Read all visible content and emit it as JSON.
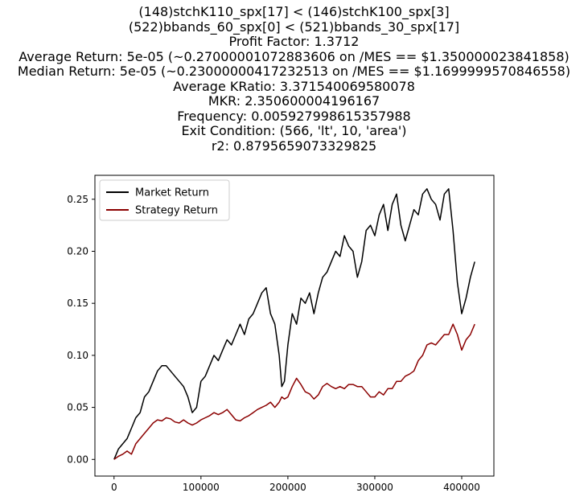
{
  "chart_data": {
    "type": "line",
    "title_lines": [
      "(148)stchK110_spx[17] < (146)stchK100_spx[3]",
      "(522)bbands_60_spx[0] < (521)bbands_30_spx[17]",
      "Profit Factor: 1.3712",
      "Average Return: 5e-05 (~0.27000001072883606 on /MES == $1.350000023841858)",
      "Median Return: 5e-05 (~0.23000000417232513 on /MES == $1.1699999570846558)",
      "Average KRatio: 3.371540069580078",
      "MKR: 2.350600004196167",
      "Frequency: 0.005927998615357988",
      "Exit Condition: (566, 'lt', 10, 'area')",
      "r2: 0.8795659073329825"
    ],
    "xlabel": "",
    "ylabel": "",
    "xlim": [
      -22000,
      437000
    ],
    "ylim": [
      -0.016,
      0.273
    ],
    "x_ticks": [
      0,
      100000,
      200000,
      300000,
      400000
    ],
    "x_tick_labels": [
      "0",
      "100000",
      "200000",
      "300000",
      "400000"
    ],
    "y_ticks": [
      0.0,
      0.05,
      0.1,
      0.15,
      0.2,
      0.25
    ],
    "y_tick_labels": [
      "0.00",
      "0.05",
      "0.10",
      "0.15",
      "0.20",
      "0.25"
    ],
    "grid": false,
    "legend_position": "top-left",
    "series": [
      {
        "name": "Market Return",
        "color": "#000000",
        "x": [
          0,
          5000,
          10000,
          15000,
          20000,
          25000,
          30000,
          35000,
          40000,
          45000,
          50000,
          55000,
          60000,
          65000,
          70000,
          75000,
          80000,
          85000,
          90000,
          95000,
          100000,
          105000,
          110000,
          115000,
          120000,
          125000,
          130000,
          135000,
          140000,
          145000,
          150000,
          155000,
          160000,
          165000,
          170000,
          175000,
          180000,
          185000,
          190000,
          193000,
          196000,
          200000,
          205000,
          210000,
          215000,
          220000,
          225000,
          230000,
          235000,
          240000,
          245000,
          250000,
          255000,
          260000,
          265000,
          270000,
          275000,
          280000,
          285000,
          290000,
          295000,
          300000,
          305000,
          310000,
          315000,
          320000,
          325000,
          330000,
          335000,
          340000,
          345000,
          350000,
          355000,
          360000,
          365000,
          370000,
          375000,
          380000,
          385000,
          390000,
          395000,
          400000,
          405000,
          410000,
          415000
        ],
        "y": [
          0.0,
          0.01,
          0.015,
          0.02,
          0.03,
          0.04,
          0.045,
          0.06,
          0.065,
          0.075,
          0.085,
          0.09,
          0.09,
          0.085,
          0.08,
          0.075,
          0.07,
          0.06,
          0.045,
          0.05,
          0.075,
          0.08,
          0.09,
          0.1,
          0.095,
          0.105,
          0.115,
          0.11,
          0.12,
          0.13,
          0.12,
          0.135,
          0.14,
          0.15,
          0.16,
          0.165,
          0.14,
          0.13,
          0.1,
          0.07,
          0.075,
          0.11,
          0.14,
          0.13,
          0.155,
          0.15,
          0.16,
          0.14,
          0.16,
          0.175,
          0.18,
          0.19,
          0.2,
          0.195,
          0.215,
          0.205,
          0.2,
          0.175,
          0.19,
          0.22,
          0.225,
          0.215,
          0.235,
          0.245,
          0.22,
          0.245,
          0.255,
          0.225,
          0.21,
          0.225,
          0.24,
          0.235,
          0.255,
          0.26,
          0.25,
          0.245,
          0.23,
          0.255,
          0.26,
          0.22,
          0.17,
          0.14,
          0.155,
          0.175,
          0.19
        ]
      },
      {
        "name": "Strategy Return",
        "color": "#8b0000",
        "x": [
          0,
          5000,
          10000,
          15000,
          20000,
          25000,
          30000,
          35000,
          40000,
          45000,
          50000,
          55000,
          60000,
          65000,
          70000,
          75000,
          80000,
          85000,
          90000,
          95000,
          100000,
          105000,
          110000,
          115000,
          120000,
          125000,
          130000,
          135000,
          140000,
          145000,
          150000,
          155000,
          160000,
          165000,
          170000,
          175000,
          180000,
          185000,
          190000,
          193000,
          196000,
          200000,
          205000,
          210000,
          215000,
          220000,
          225000,
          230000,
          235000,
          240000,
          245000,
          250000,
          255000,
          260000,
          265000,
          270000,
          275000,
          280000,
          285000,
          290000,
          295000,
          300000,
          305000,
          310000,
          315000,
          320000,
          325000,
          330000,
          335000,
          340000,
          345000,
          350000,
          355000,
          360000,
          365000,
          370000,
          375000,
          380000,
          385000,
          390000,
          395000,
          400000,
          405000,
          410000,
          415000
        ],
        "y": [
          0.0,
          0.003,
          0.005,
          0.008,
          0.005,
          0.015,
          0.02,
          0.025,
          0.03,
          0.035,
          0.038,
          0.037,
          0.04,
          0.039,
          0.036,
          0.035,
          0.038,
          0.035,
          0.033,
          0.035,
          0.038,
          0.04,
          0.042,
          0.045,
          0.043,
          0.045,
          0.048,
          0.043,
          0.038,
          0.037,
          0.04,
          0.042,
          0.045,
          0.048,
          0.05,
          0.052,
          0.055,
          0.05,
          0.055,
          0.06,
          0.058,
          0.06,
          0.07,
          0.078,
          0.072,
          0.065,
          0.063,
          0.058,
          0.062,
          0.07,
          0.073,
          0.07,
          0.068,
          0.07,
          0.068,
          0.072,
          0.072,
          0.07,
          0.07,
          0.065,
          0.06,
          0.06,
          0.065,
          0.062,
          0.068,
          0.068,
          0.075,
          0.075,
          0.08,
          0.082,
          0.085,
          0.095,
          0.1,
          0.11,
          0.112,
          0.11,
          0.115,
          0.12,
          0.12,
          0.13,
          0.12,
          0.105,
          0.115,
          0.12,
          0.13
        ]
      }
    ]
  }
}
